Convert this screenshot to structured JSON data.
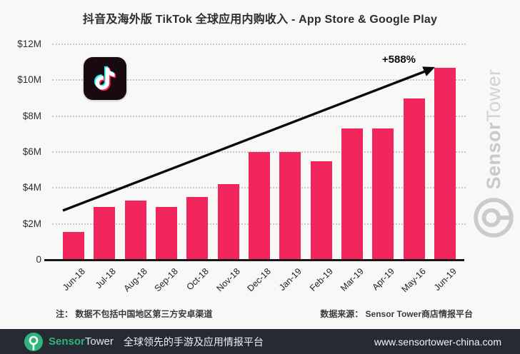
{
  "title": "抖音及海外版 TikTok 全球应用内购收入 - App Store & Google Play",
  "chart_data": {
    "type": "bar",
    "title": "抖音及海外版 TikTok 全球应用内购收入 - App Store & Google Play",
    "categories": [
      "Jun-18",
      "Jul-18",
      "Aug-18",
      "Sep-18",
      "Oct-18",
      "Nov-18",
      "Dec-18",
      "Jan-19",
      "Feb-19",
      "Mar-19",
      "Apr-19",
      "May-16",
      "Jun-19"
    ],
    "values": [
      1.55,
      2.95,
      3.3,
      2.95,
      3.5,
      4.2,
      6.0,
      6.0,
      5.5,
      7.3,
      7.3,
      9.0,
      10.7
    ],
    "unit": "USD millions",
    "xlabel": "",
    "ylabel": "",
    "ylim": [
      0,
      12
    ],
    "yticks": [
      {
        "label": "$12M",
        "value": 12
      },
      {
        "label": "$10M",
        "value": 10
      },
      {
        "label": "$8M",
        "value": 8
      },
      {
        "label": "$6M",
        "value": 6
      },
      {
        "label": "$4M",
        "value": 4
      },
      {
        "label": "$2M",
        "value": 2
      },
      {
        "label": "0",
        "value": 0
      }
    ],
    "grid": "horizontal-dotted",
    "legend": "none",
    "bar_color": "#F2265C",
    "annotation": {
      "label": "+588%",
      "type": "growth-arrow",
      "from_category": "Jun-18",
      "to_category": "Jun-19"
    }
  },
  "notes": {
    "left": "注： 数据不包括中国地区第三方安卓渠道",
    "right": "数据来源： Sensor Tower商店情报平台"
  },
  "watermark": {
    "brand_bold": "Sensor",
    "brand_light": "Tower",
    "color": "#C7C7C7"
  },
  "footer": {
    "brand_bold": "Sensor",
    "brand_light": "Tower",
    "tagline": "全球领先的手游及应用情报平台",
    "url": "www.sensortower-china.com",
    "bg_color": "#262B33",
    "brand_green": "#2FB57C"
  },
  "icons": {
    "tiktok_app": "tiktok-note-icon",
    "sensortower_logo": "sensortower-circle-icon"
  }
}
